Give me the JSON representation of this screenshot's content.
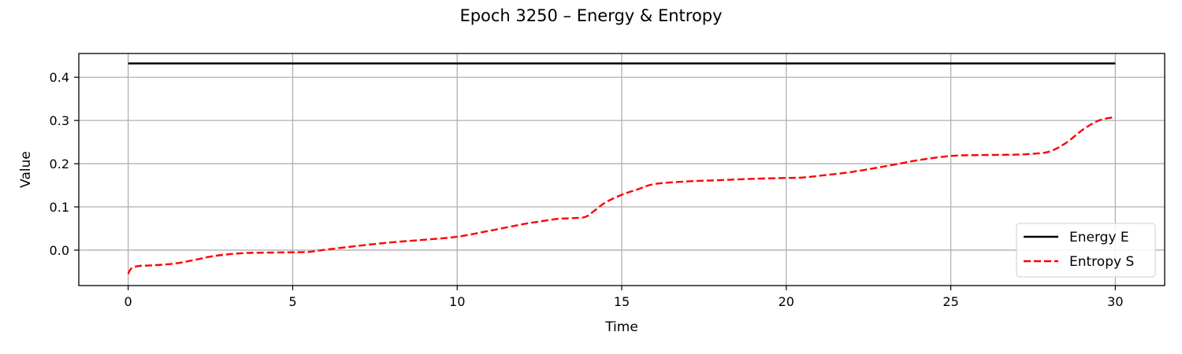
{
  "chart_data": {
    "type": "line",
    "title": "Epoch 3250 – Energy & Entropy",
    "xlabel": "Time",
    "ylabel": "Value",
    "xlim": [
      -1.5,
      31.5
    ],
    "ylim": [
      -0.082,
      0.455
    ],
    "xticks": [
      0,
      5,
      10,
      15,
      20,
      25,
      30
    ],
    "yticks": [
      0.0,
      0.1,
      0.2,
      0.3,
      0.4
    ],
    "xtick_labels": [
      "0",
      "5",
      "10",
      "15",
      "20",
      "25",
      "30"
    ],
    "ytick_labels": [
      "0.0",
      "0.1",
      "0.2",
      "0.3",
      "0.4"
    ],
    "grid": true,
    "legend_position": "lower-right",
    "series": [
      {
        "name": "Energy E",
        "color": "#000000",
        "style": "solid",
        "x": [
          0,
          30
        ],
        "y": [
          0.432,
          0.432
        ]
      },
      {
        "name": "Entropy S",
        "color": "#ff0000",
        "style": "dashed",
        "x": [
          0,
          0.1,
          0.3,
          0.5,
          1.0,
          1.5,
          2.0,
          2.5,
          3.0,
          3.5,
          4.0,
          5.0,
          5.5,
          6.0,
          7.0,
          8.0,
          9.0,
          10.0,
          11.0,
          12.0,
          12.5,
          13.0,
          13.5,
          13.9,
          14.2,
          14.5,
          15.0,
          15.5,
          16.0,
          17.0,
          18.0,
          19.0,
          20.0,
          20.5,
          21.0,
          22.0,
          23.0,
          23.5,
          24.0,
          25.0,
          26.0,
          27.0,
          27.5,
          28.0,
          28.5,
          29.0,
          29.5,
          30.0
        ],
        "y": [
          -0.055,
          -0.042,
          -0.037,
          -0.036,
          -0.034,
          -0.03,
          -0.023,
          -0.015,
          -0.01,
          -0.007,
          -0.006,
          -0.005,
          -0.004,
          0.001,
          0.01,
          0.018,
          0.024,
          0.031,
          0.045,
          0.06,
          0.066,
          0.072,
          0.074,
          0.077,
          0.093,
          0.11,
          0.128,
          0.141,
          0.153,
          0.159,
          0.162,
          0.165,
          0.167,
          0.168,
          0.172,
          0.181,
          0.194,
          0.201,
          0.208,
          0.218,
          0.22,
          0.221,
          0.223,
          0.228,
          0.248,
          0.278,
          0.3,
          0.308
        ]
      }
    ]
  }
}
